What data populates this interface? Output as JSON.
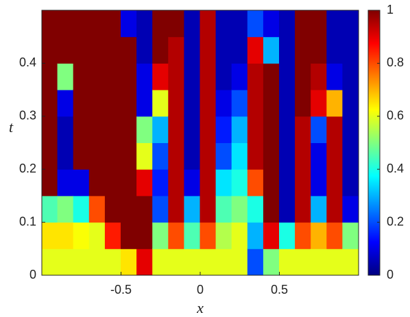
{
  "chart_data": {
    "type": "heatmap",
    "colormap": "jet",
    "xlabel": "x",
    "ylabel": "t",
    "x": [
      -0.95,
      -0.85,
      -0.75,
      -0.65,
      -0.55,
      -0.45,
      -0.35,
      -0.25,
      -0.15,
      -0.05,
      0.05,
      0.15,
      0.25,
      0.35,
      0.45,
      0.55,
      0.65,
      0.75,
      0.85,
      0.95
    ],
    "y": [
      0.025,
      0.075,
      0.125,
      0.175,
      0.225,
      0.275,
      0.325,
      0.375,
      0.425,
      0.475
    ],
    "z": [
      [
        0.6,
        0.65,
        0.45,
        1,
        1,
        1,
        1,
        1,
        1,
        1
      ],
      [
        0.6,
        0.65,
        0.5,
        0.1,
        0.05,
        0.05,
        0.1,
        0.5,
        1,
        1
      ],
      [
        0.6,
        0.62,
        0.4,
        0.1,
        1,
        1,
        1,
        1,
        1,
        1
      ],
      [
        0.6,
        0.6,
        0.8,
        1,
        1,
        1,
        1,
        1,
        1,
        1
      ],
      [
        0.6,
        0.85,
        1,
        1,
        1,
        1,
        1,
        1,
        1,
        1
      ],
      [
        0.65,
        1,
        1,
        1,
        1,
        1,
        1,
        1,
        1,
        0.1
      ],
      [
        0.9,
        1,
        1,
        0.9,
        0.6,
        0.5,
        0.1,
        0.1,
        0.05,
        0.05
      ],
      [
        0.6,
        0.5,
        0.2,
        0.15,
        0.2,
        0.3,
        0.6,
        0.9,
        1,
        1
      ],
      [
        0.6,
        0.8,
        0.95,
        0.95,
        0.95,
        0.95,
        0.95,
        0.95,
        0.95,
        1
      ],
      [
        0.6,
        0.45,
        0.3,
        0.1,
        0.05,
        0.05,
        0.05,
        0.05,
        0.05,
        0.05
      ],
      [
        0.6,
        0.8,
        0.95,
        0.95,
        0.95,
        0.95,
        0.95,
        0.95,
        0.95,
        0.95
      ],
      [
        0.6,
        0.55,
        0.45,
        0.35,
        0.2,
        0.15,
        0.1,
        0.05,
        0.05,
        0.05
      ],
      [
        0.6,
        0.6,
        0.5,
        0.4,
        0.35,
        0.3,
        0.2,
        0.1,
        0.05,
        0.05
      ],
      [
        0.2,
        0.3,
        0.4,
        0.8,
        0.95,
        0.95,
        0.95,
        0.95,
        0.9,
        0.2
      ],
      [
        0.5,
        0.9,
        1,
        1,
        1,
        1,
        1,
        1,
        0.3,
        0.1
      ],
      [
        0.6,
        0.4,
        0.05,
        0.05,
        0.05,
        0.05,
        0.05,
        0.05,
        0.05,
        0.05
      ],
      [
        0.6,
        0.8,
        0.95,
        0.95,
        0.95,
        0.95,
        1,
        1,
        1,
        1
      ],
      [
        0.6,
        0.7,
        0.3,
        0.1,
        0.1,
        0.2,
        0.9,
        0.95,
        1,
        1
      ],
      [
        0.6,
        0.8,
        0.95,
        0.95,
        0.95,
        0.95,
        0.7,
        0.1,
        0.05,
        0.05
      ],
      [
        0.6,
        0.5,
        0.1,
        0.05,
        0.05,
        0.05,
        0.05,
        0.05,
        0.05,
        0.05
      ]
    ],
    "xlim": [
      -1,
      1
    ],
    "ylim": [
      0,
      0.5
    ],
    "xticks": [
      -0.5,
      0,
      0.5
    ],
    "yticks": [
      0,
      0.1,
      0.2,
      0.3,
      0.4
    ],
    "clim": [
      0,
      1
    ],
    "cticks": [
      0,
      0.2,
      0.4,
      0.6,
      0.8,
      1
    ]
  }
}
